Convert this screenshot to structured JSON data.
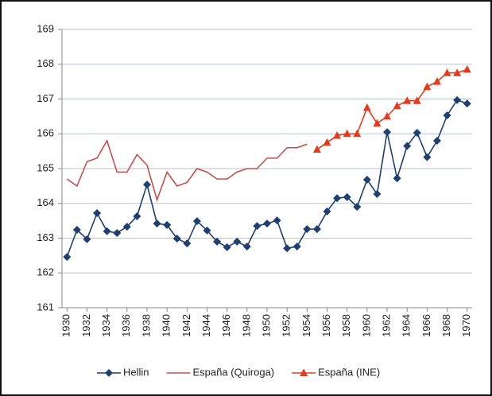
{
  "chart_data": {
    "type": "line",
    "x": [
      1930,
      1931,
      1932,
      1933,
      1934,
      1935,
      1936,
      1937,
      1938,
      1939,
      1940,
      1941,
      1942,
      1943,
      1944,
      1945,
      1946,
      1947,
      1948,
      1949,
      1950,
      1951,
      1952,
      1953,
      1954,
      1955,
      1956,
      1957,
      1958,
      1959,
      1960,
      1961,
      1962,
      1963,
      1964,
      1965,
      1966,
      1967,
      1968,
      1969,
      1970
    ],
    "series": [
      {
        "name": "Hellin",
        "color": "#1f3f6e",
        "marker": "diamond",
        "values": [
          162.46,
          163.24,
          162.97,
          163.72,
          163.2,
          163.15,
          163.33,
          163.63,
          164.54,
          163.42,
          163.38,
          162.99,
          162.85,
          163.49,
          163.22,
          162.9,
          162.74,
          162.9,
          162.76,
          163.35,
          163.42,
          163.51,
          162.71,
          162.76,
          163.26,
          163.26,
          163.77,
          164.15,
          164.18,
          163.9,
          164.68,
          164.27,
          166.05,
          164.72,
          165.65,
          166.03,
          165.33,
          165.8,
          166.53,
          166.97,
          166.87
        ]
      },
      {
        "name": "España (Quiroga)",
        "color": "#c0504d",
        "marker": "none",
        "values": [
          164.7,
          164.5,
          165.2,
          165.3,
          165.8,
          164.9,
          164.9,
          165.4,
          165.1,
          164.1,
          164.9,
          164.5,
          164.6,
          165.0,
          164.9,
          164.7,
          164.7,
          164.9,
          165.0,
          165.0,
          165.3,
          165.3,
          165.6,
          165.6,
          165.7,
          null,
          null,
          null,
          null,
          null,
          null,
          null,
          null,
          null,
          null,
          null,
          null,
          null,
          null,
          null,
          null
        ]
      },
      {
        "name": "España (INE)",
        "color": "#e03c1e",
        "marker": "triangle",
        "values": [
          null,
          null,
          null,
          null,
          null,
          null,
          null,
          null,
          null,
          null,
          null,
          null,
          null,
          null,
          null,
          null,
          null,
          null,
          null,
          null,
          null,
          null,
          null,
          null,
          null,
          165.55,
          165.75,
          165.95,
          166.0,
          166.0,
          166.75,
          166.3,
          166.5,
          166.8,
          166.95,
          166.95,
          167.35,
          167.5,
          167.75,
          167.75,
          167.85
        ]
      }
    ],
    "xlim": [
      1929.5,
      1970.5
    ],
    "xticks": [
      1930,
      1932,
      1934,
      1936,
      1938,
      1940,
      1942,
      1944,
      1946,
      1948,
      1950,
      1952,
      1954,
      1956,
      1958,
      1960,
      1962,
      1964,
      1966,
      1968,
      1970
    ],
    "ylim": [
      161,
      169
    ],
    "yticks": [
      161,
      162,
      163,
      164,
      165,
      166,
      167,
      168,
      169
    ],
    "grid": true,
    "legend": "bottom"
  }
}
